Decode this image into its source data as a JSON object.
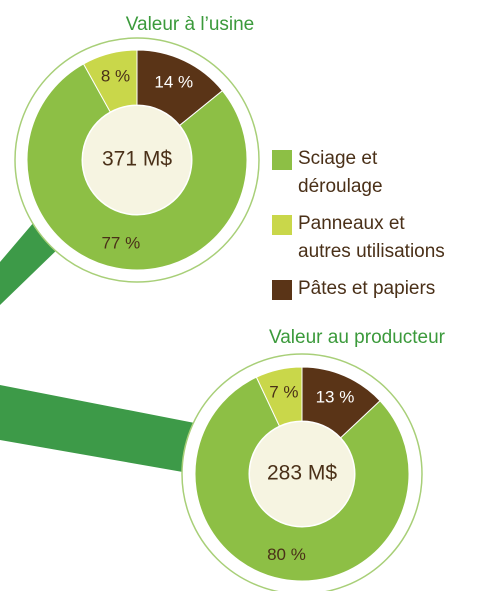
{
  "chart_data": [
    {
      "type": "pie",
      "title": "Valeur à l’usine",
      "center_label": "371 M$",
      "categories": [
        "Sciage et déroulage",
        "Panneaux et autres utilisations",
        "Pâtes et papiers"
      ],
      "values": [
        77,
        8,
        14
      ],
      "value_labels": [
        "77 %",
        "8 %",
        "14 %"
      ],
      "colors": [
        "#8dbf45",
        "#c9d74a",
        "#5a3417"
      ]
    },
    {
      "type": "pie",
      "title": "Valeur au producteur",
      "center_label": "283 M$",
      "categories": [
        "Sciage et déroulage",
        "Panneaux et autres utilisations",
        "Pâtes et papiers"
      ],
      "values": [
        80,
        7,
        13
      ],
      "value_labels": [
        "80 %",
        "7 %",
        "13 %"
      ],
      "colors": [
        "#8dbf45",
        "#c9d74a",
        "#5a3417"
      ]
    }
  ]
}
